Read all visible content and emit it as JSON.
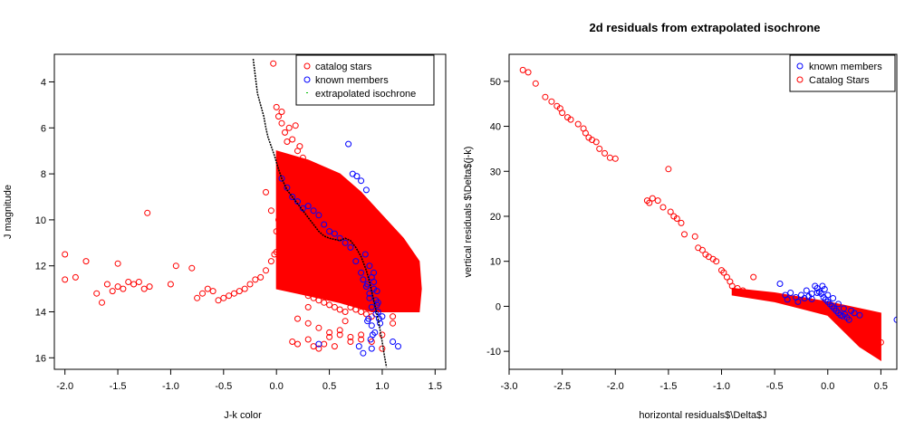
{
  "chart_data": [
    {
      "type": "scatter",
      "title": "",
      "xlabel": "J-k color",
      "ylabel": "J magnitude",
      "xlim": [
        -2.1,
        1.6
      ],
      "ylim": [
        16.5,
        2.8
      ],
      "y_inverted": true,
      "xticks": [
        -2.0,
        -1.5,
        -1.0,
        -0.5,
        0.0,
        0.5,
        1.0,
        1.5
      ],
      "xtick_labels": [
        "-2.0",
        "-1.5",
        "-1.0",
        "-0.5",
        "0.0",
        "0.5",
        "1.0",
        "1.5"
      ],
      "yticks": [
        4,
        6,
        8,
        10,
        12,
        14,
        16
      ],
      "ytick_labels": [
        "4",
        "6",
        "8",
        "10",
        "12",
        "14",
        "16"
      ],
      "grid": false,
      "legend": {
        "placement": "top-right",
        "entries": [
          {
            "label": "catalog stars",
            "color": "#ff0000",
            "marker": "circle"
          },
          {
            "label": "known members",
            "color": "#0000ff",
            "marker": "circle"
          },
          {
            "label": "extrapolated isochrone",
            "color": "#00bb00",
            "marker": "dot"
          }
        ]
      },
      "series": [
        {
          "name": "catalog stars",
          "color": "#ff0000",
          "marker": "open-circle",
          "dense_region": {
            "polygon": [
              [
                0.0,
                7.0
              ],
              [
                0.3,
                7.4
              ],
              [
                0.6,
                8.0
              ],
              [
                0.8,
                8.8
              ],
              [
                1.0,
                9.8
              ],
              [
                1.2,
                10.8
              ],
              [
                1.35,
                11.8
              ],
              [
                1.37,
                13.0
              ],
              [
                1.35,
                14.0
              ],
              [
                0.9,
                14.0
              ],
              [
                0.6,
                13.6
              ],
              [
                0.2,
                13.2
              ],
              [
                0.0,
                13.0
              ],
              [
                0.0,
                10.0
              ]
            ]
          },
          "x": [
            0.0,
            0.02,
            0.05,
            0.08,
            0.1,
            0.12,
            0.15,
            0.18,
            0.2,
            0.22,
            0.25,
            0.05,
            0.1,
            0.15,
            0.2,
            0.25,
            0.3,
            0.08,
            0.12,
            0.18,
            -0.02,
            0.03,
            0.06,
            0.1,
            0.15,
            0.2,
            0.25,
            0.3,
            0.35,
            0.4,
            0.45,
            0.5,
            0.55,
            0.6,
            0.65,
            0.7,
            0.75,
            0.8,
            0.85,
            0.9,
            0.2,
            0.3,
            0.4,
            0.5,
            0.6,
            0.7,
            0.8,
            0.9,
            1.0,
            1.1,
            -0.15,
            -0.1,
            -0.05,
            0.0,
            -0.2,
            -0.25,
            -0.3,
            -0.35,
            -0.4,
            -0.45,
            -0.5,
            -0.55,
            -0.6,
            -0.65,
            -0.7,
            -0.75,
            -0.8,
            -0.95,
            -1.0,
            -1.2,
            -1.25,
            -1.3,
            -1.35,
            -1.4,
            -1.45,
            -1.5,
            -1.55,
            -1.6,
            -1.65,
            -1.7,
            -1.8,
            -1.9,
            -2.0,
            -2.0,
            -1.5,
            -1.22,
            -0.1,
            -0.05,
            0.15,
            0.2,
            0.3,
            0.35,
            0.4,
            0.45,
            0.5,
            0.55,
            0.6,
            0.65,
            0.7,
            0.8,
            1.0,
            1.1,
            0.6,
            0.3,
            0.05,
            -0.03,
            0.02,
            0.0
          ],
          "y": [
            5.1,
            5.5,
            5.8,
            6.2,
            6.6,
            6.0,
            6.5,
            5.9,
            7.0,
            6.8,
            7.3,
            7.8,
            8.2,
            8.5,
            8.9,
            9.4,
            9.9,
            10.4,
            10.8,
            11.2,
            11.5,
            11.8,
            12.1,
            12.4,
            12.6,
            12.9,
            13.1,
            13.3,
            13.4,
            13.5,
            13.6,
            13.7,
            13.8,
            13.9,
            14.0,
            13.8,
            13.9,
            14.0,
            14.1,
            14.2,
            14.3,
            14.5,
            14.7,
            14.9,
            15.0,
            15.1,
            15.2,
            15.3,
            15.0,
            14.5,
            12.5,
            12.2,
            11.8,
            11.4,
            12.6,
            12.8,
            13.0,
            13.1,
            13.2,
            13.3,
            13.4,
            13.5,
            13.1,
            13.0,
            13.2,
            13.4,
            12.1,
            12.0,
            12.8,
            12.9,
            13.0,
            12.7,
            12.8,
            12.7,
            13.0,
            12.9,
            13.1,
            12.8,
            13.6,
            13.2,
            11.8,
            12.5,
            11.5,
            12.6,
            11.9,
            9.7,
            8.8,
            9.6,
            15.3,
            15.4,
            15.2,
            15.5,
            15.6,
            15.4,
            15.1,
            15.5,
            14.8,
            14.4,
            15.3,
            15.0,
            15.6,
            14.2,
            11.9,
            13.8,
            5.3,
            3.2,
            10.0,
            10.5
          ],
          "note": ""
        },
        {
          "name": "known members",
          "color": "#0000ff",
          "marker": "open-circle",
          "x": [
            0.68,
            0.72,
            0.76,
            0.8,
            0.85,
            0.88,
            0.9,
            0.92,
            0.94,
            0.96,
            0.98,
            1.0,
            0.9,
            0.88,
            0.86,
            0.92,
            0.95,
            0.9,
            0.93,
            0.87,
            0.91,
            0.89,
            0.94,
            0.96,
            0.85,
            0.82,
            0.8,
            0.75,
            0.7,
            0.65,
            0.6,
            0.55,
            0.5,
            0.45,
            0.4,
            0.35,
            0.3,
            0.25,
            0.2,
            0.15,
            0.1,
            0.05,
            0.78,
            0.82,
            0.9,
            1.15,
            1.1,
            0.4,
            0.88,
            0.92,
            0.95,
            0.97,
            0.86,
            0.84
          ],
          "y": [
            6.7,
            8.0,
            8.1,
            8.3,
            8.7,
            12.0,
            12.5,
            13.0,
            13.5,
            14.0,
            14.5,
            14.2,
            13.8,
            13.2,
            12.8,
            12.3,
            13.7,
            14.6,
            14.9,
            14.3,
            15.0,
            15.2,
            14.1,
            13.6,
            12.9,
            12.6,
            12.3,
            11.8,
            11.2,
            11.0,
            10.8,
            10.6,
            10.5,
            10.2,
            9.8,
            9.6,
            9.4,
            9.5,
            9.2,
            9.0,
            8.6,
            8.2,
            15.5,
            15.8,
            15.6,
            15.5,
            15.3,
            15.4,
            13.4,
            12.7,
            13.1,
            14.3,
            14.4,
            11.5
          ]
        },
        {
          "name": "extrapolated isochrone",
          "color": "#000000",
          "marker": "line",
          "x": [
            -0.22,
            -0.18,
            -0.15,
            -0.12,
            -0.1,
            -0.08,
            -0.05,
            -0.02,
            0.0,
            0.02,
            0.05,
            0.1,
            0.15,
            0.2,
            0.25,
            0.3,
            0.35,
            0.4,
            0.45,
            0.5,
            0.55,
            0.6,
            0.65,
            0.7,
            0.75,
            0.8,
            0.85,
            0.88,
            0.9,
            0.92,
            0.94,
            0.96,
            0.98,
            1.0,
            1.02,
            1.04
          ],
          "y": [
            3.0,
            4.5,
            5.0,
            5.5,
            6.0,
            6.4,
            6.8,
            7.2,
            7.5,
            7.8,
            8.2,
            8.7,
            9.0,
            9.3,
            9.6,
            9.9,
            10.2,
            10.5,
            10.7,
            10.8,
            10.85,
            10.9,
            10.8,
            10.9,
            11.2,
            11.6,
            12.2,
            12.7,
            13.1,
            13.5,
            13.9,
            14.3,
            14.8,
            15.3,
            15.9,
            16.4
          ]
        }
      ]
    },
    {
      "type": "scatter",
      "title": "2d residuals from extrapolated isochrone",
      "xlabel": "horizontal residuals$\\Delta$J",
      "ylabel": "vertical residuals $\\Delta$(j-k)",
      "xlim": [
        -3.0,
        0.65
      ],
      "ylim": [
        -14.0,
        56.0
      ],
      "xticks": [
        -3.0,
        -2.5,
        -2.0,
        -1.5,
        -1.0,
        -0.5,
        0.0,
        0.5
      ],
      "xtick_labels": [
        "-3.0",
        "-2.5",
        "-2.0",
        "-1.5",
        "-1.0",
        "-0.5",
        "0.0",
        "0.5"
      ],
      "yticks": [
        -10,
        0,
        10,
        20,
        30,
        40,
        50
      ],
      "ytick_labels": [
        "-10",
        "0",
        "10",
        "20",
        "30",
        "40",
        "50"
      ],
      "grid": false,
      "legend": {
        "placement": "top-right",
        "entries": [
          {
            "label": "known members",
            "color": "#0000ff",
            "marker": "circle"
          },
          {
            "label": "Catalog Stars",
            "color": "#ff0000",
            "marker": "circle"
          }
        ]
      },
      "series": [
        {
          "name": "Catalog Stars",
          "color": "#ff0000",
          "marker": "open-circle",
          "dense_region": {
            "polygon": [
              [
                -0.9,
                4.0
              ],
              [
                -0.5,
                3.0
              ],
              [
                0.0,
                1.0
              ],
              [
                0.5,
                -1.5
              ],
              [
                0.5,
                -12.0
              ],
              [
                0.3,
                -9.0
              ],
              [
                0.0,
                -2.0
              ],
              [
                -0.5,
                1.0
              ],
              [
                -0.9,
                2.5
              ]
            ]
          },
          "x": [
            -2.87,
            -2.82,
            -2.75,
            -2.66,
            -2.6,
            -2.55,
            -2.52,
            -2.5,
            -2.45,
            -2.42,
            -2.35,
            -2.3,
            -2.28,
            -2.25,
            -2.22,
            -2.18,
            -2.15,
            -2.1,
            -2.05,
            -2.0,
            -1.7,
            -1.68,
            -1.65,
            -1.6,
            -1.55,
            -1.5,
            -1.48,
            -1.45,
            -1.42,
            -1.38,
            -1.35,
            -1.25,
            -1.22,
            -1.18,
            -1.15,
            -1.12,
            -1.08,
            -1.05,
            -1.0,
            -0.98,
            -0.95,
            -0.92,
            -0.9,
            -0.85,
            -0.8,
            -0.75,
            -0.7,
            -0.6,
            -0.5,
            -0.4,
            -0.3,
            -0.2,
            -0.1,
            0.0,
            0.1,
            0.2,
            0.3,
            0.4,
            0.45,
            0.5
          ],
          "y": [
            52.5,
            52.0,
            49.5,
            46.5,
            45.5,
            44.5,
            44.0,
            43.0,
            42.0,
            41.5,
            40.5,
            39.5,
            38.5,
            37.5,
            37.0,
            36.5,
            35.0,
            34.0,
            33.0,
            32.8,
            23.5,
            23.0,
            24.0,
            23.5,
            22.0,
            30.5,
            21.0,
            20.0,
            19.5,
            18.5,
            16.0,
            15.5,
            13.0,
            12.5,
            11.5,
            11.0,
            10.5,
            10.0,
            8.0,
            7.5,
            6.5,
            5.5,
            4.5,
            4.0,
            3.5,
            3.0,
            6.5,
            2.5,
            2.0,
            1.5,
            1.0,
            0.5,
            0.0,
            -1.0,
            -2.0,
            -3.0,
            -4.0,
            -5.0,
            -6.0,
            -8.0
          ]
        },
        {
          "name": "known members",
          "color": "#0000ff",
          "marker": "open-circle",
          "x": [
            -0.45,
            -0.4,
            -0.38,
            -0.35,
            -0.3,
            -0.28,
            -0.25,
            -0.22,
            -0.2,
            -0.18,
            -0.15,
            -0.12,
            -0.1,
            -0.08,
            -0.06,
            -0.04,
            -0.02,
            0.0,
            0.02,
            0.04,
            0.06,
            0.08,
            0.1,
            0.12,
            0.14,
            0.16,
            0.18,
            0.2,
            -0.05,
            -0.03,
            0.0,
            0.05,
            0.1,
            0.15,
            0.22,
            0.25,
            0.3,
            -0.1,
            -0.15,
            0.65
          ],
          "y": [
            5.0,
            2.5,
            1.5,
            3.0,
            2.0,
            1.0,
            2.5,
            1.8,
            3.5,
            2.2,
            1.6,
            4.5,
            4.0,
            3.2,
            2.8,
            2.0,
            1.5,
            1.0,
            0.5,
            0.0,
            -0.5,
            -1.0,
            -1.5,
            -2.0,
            -2.2,
            -1.8,
            -2.5,
            -3.0,
            4.5,
            3.8,
            2.5,
            1.8,
            0.5,
            -0.5,
            -1.0,
            -1.5,
            -2.0,
            3.0,
            2.8,
            -3.0
          ]
        }
      ]
    }
  ]
}
